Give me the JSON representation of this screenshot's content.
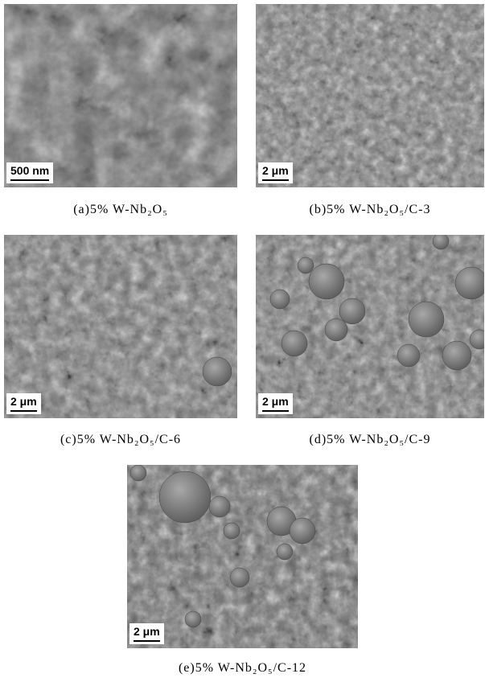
{
  "figure": {
    "panels": [
      {
        "caption": "(a)5% W-Nb₂O₅",
        "scale_bar": "500 nm"
      },
      {
        "caption": "(b)5% W-Nb₂O₅/C-3",
        "scale_bar": "2 μm"
      },
      {
        "caption": "(c)5% W-Nb₂O₅/C-6",
        "scale_bar": "2 μm"
      },
      {
        "caption": "(d)5% W-Nb₂O₅/C-9",
        "scale_bar": "2 μm"
      },
      {
        "caption": "(e)5% W-Nb₂O₅/C-12",
        "scale_bar": "2 μm"
      }
    ]
  }
}
